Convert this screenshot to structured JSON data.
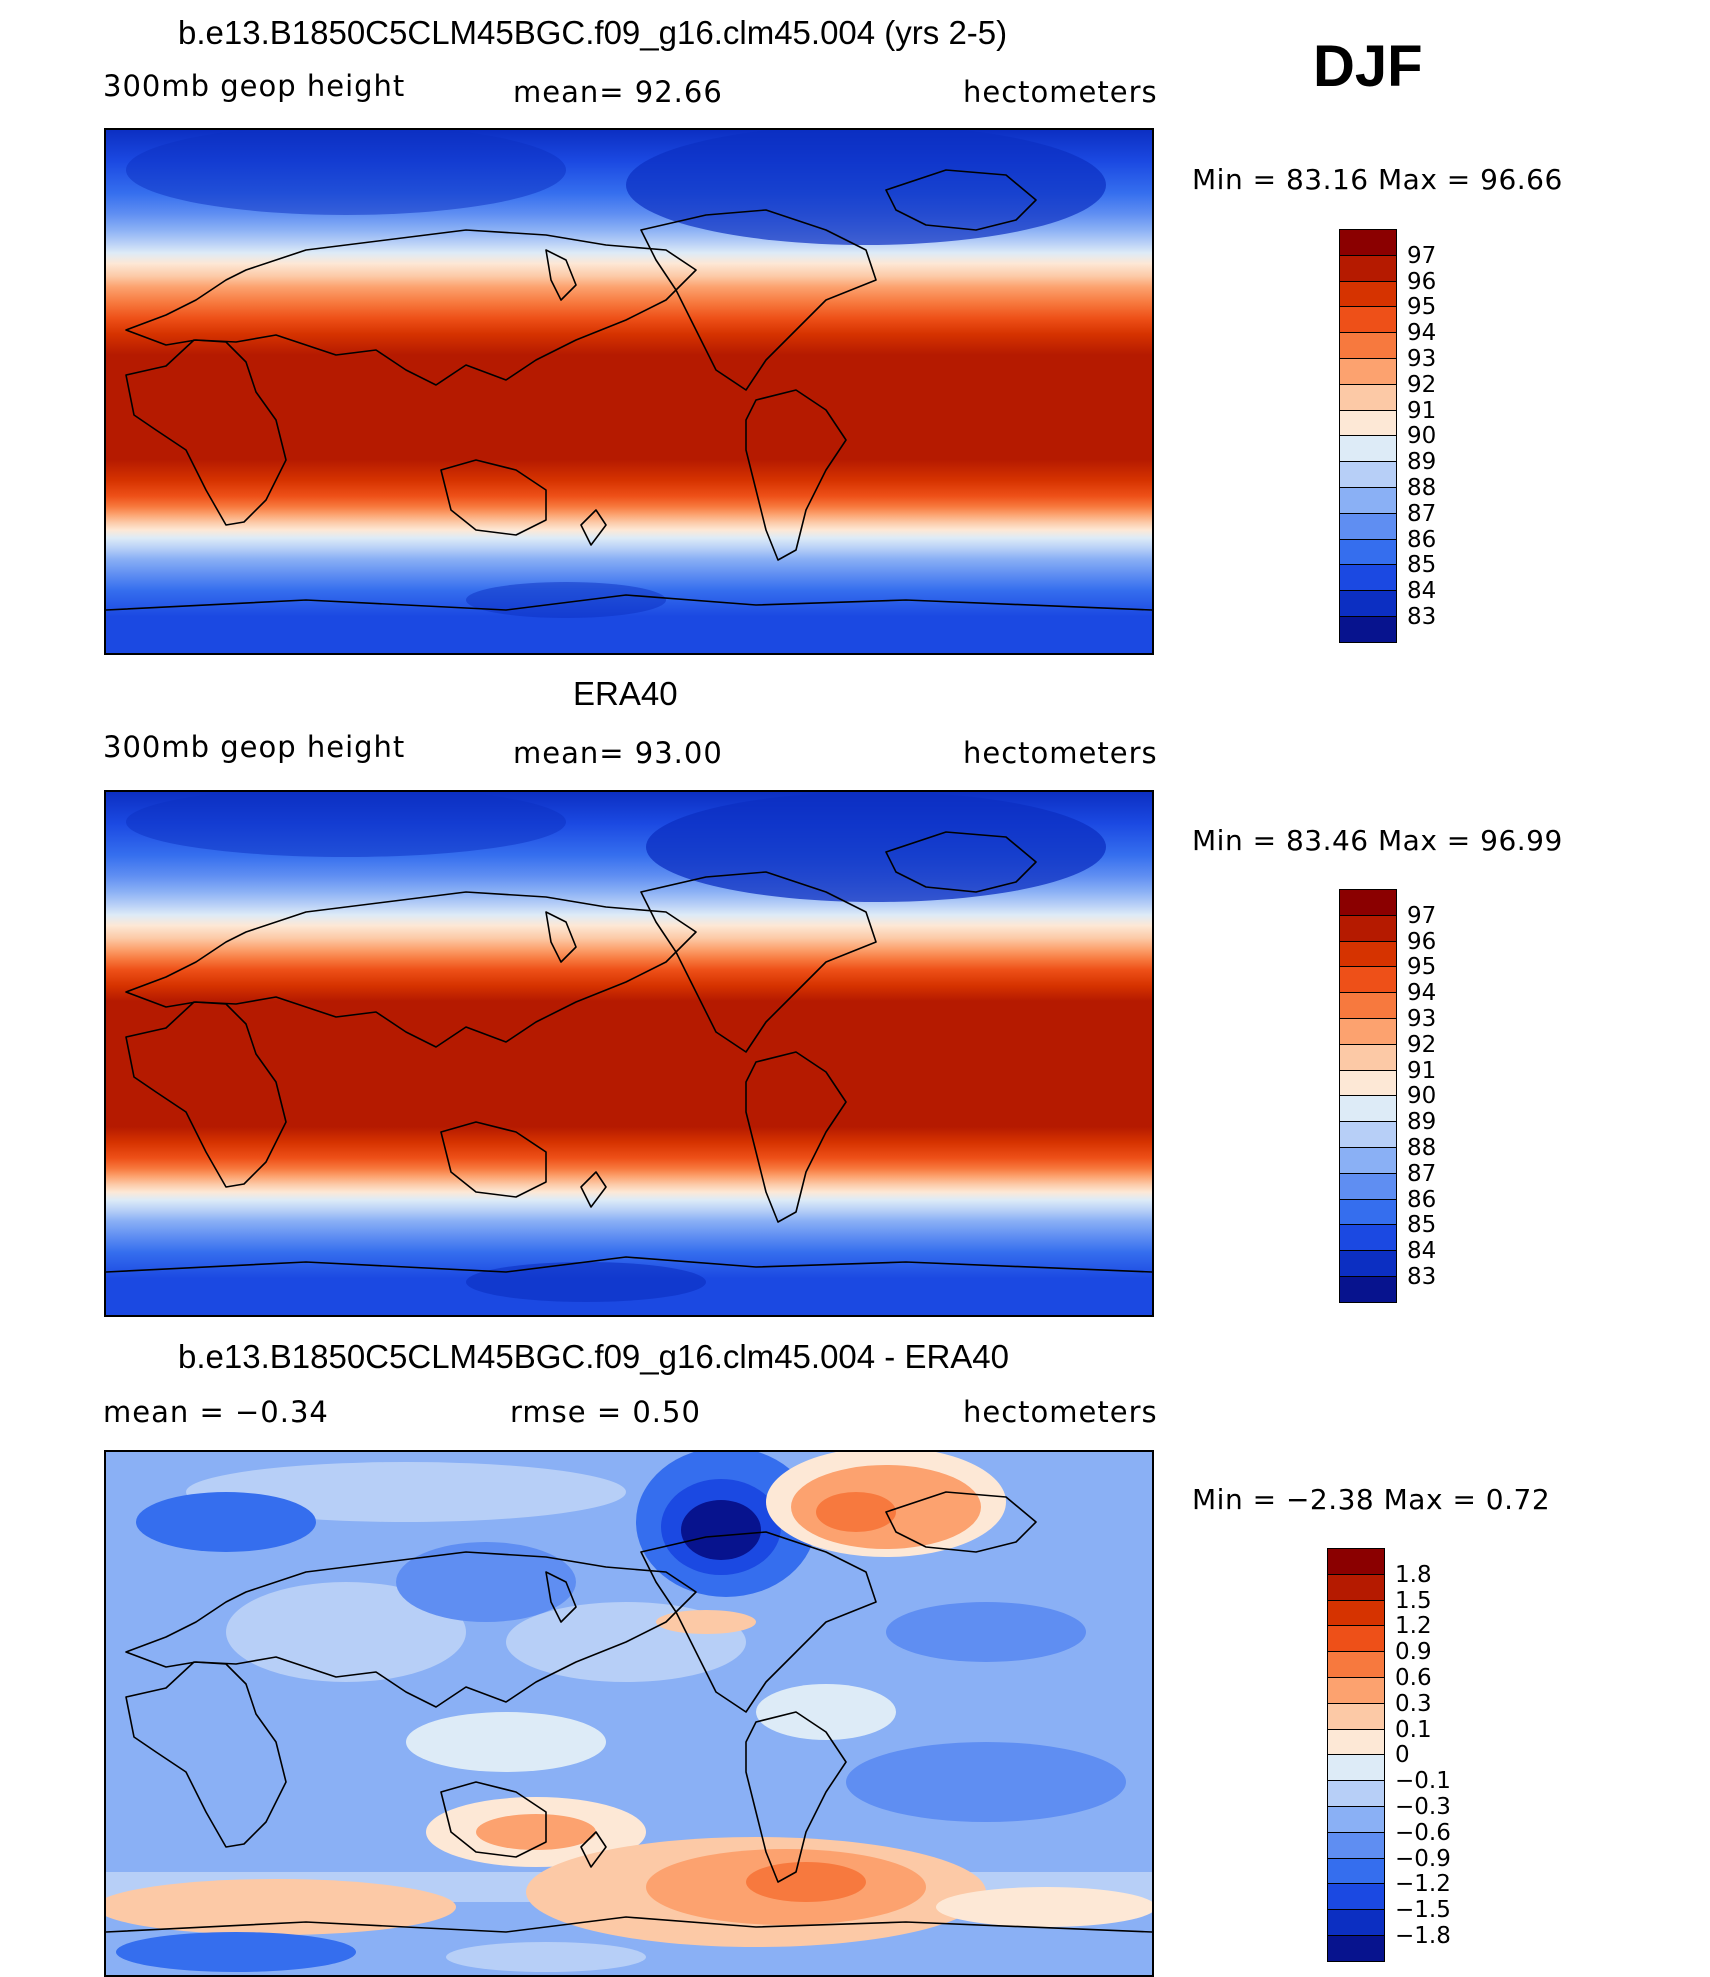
{
  "season": "DJF",
  "panels": [
    {
      "title": "b.e13.B1850C5CLM45BGC.f09_g16.clm45.004 (yrs 2-5)",
      "left_label": "300mb  geop  height",
      "center_label": "mean=   92.66",
      "right_label": "hectometers",
      "minmax": "Min  =    83.16  Max  =    96.66",
      "colorbar": {
        "labels": [
          "97",
          "96",
          "95",
          "94",
          "93",
          "92",
          "91",
          "90",
          "89",
          "88",
          "87",
          "86",
          "85",
          "84",
          "83"
        ],
        "colors": [
          "#8b0000",
          "#b51a00",
          "#d63300",
          "#ee5018",
          "#f7793e",
          "#fca26f",
          "#fcc9a6",
          "#fde8d6",
          "#ddebf7",
          "#b7cff7",
          "#8ab0f5",
          "#5f8ef2",
          "#356eee",
          "#1b49e2",
          "#0c2fc2",
          "#07138e"
        ]
      }
    },
    {
      "title": "ERA40",
      "left_label": "300mb  geop  height",
      "center_label": "mean=   93.00",
      "right_label": "hectometers",
      "minmax": "Min  =    83.46  Max  =    96.99",
      "colorbar": {
        "labels": [
          "97",
          "96",
          "95",
          "94",
          "93",
          "92",
          "91",
          "90",
          "89",
          "88",
          "87",
          "86",
          "85",
          "84",
          "83"
        ],
        "colors": [
          "#8b0000",
          "#b51a00",
          "#d63300",
          "#ee5018",
          "#f7793e",
          "#fca26f",
          "#fcc9a6",
          "#fde8d6",
          "#ddebf7",
          "#b7cff7",
          "#8ab0f5",
          "#5f8ef2",
          "#356eee",
          "#1b49e2",
          "#0c2fc2",
          "#07138e"
        ]
      }
    },
    {
      "title": "b.e13.B1850C5CLM45BGC.f09_g16.clm45.004 - ERA40",
      "left_label": "mean  =    −0.34",
      "center_label": "rmse  =     0.50",
      "right_label": "hectometers",
      "minmax": "Min  =    −2.38  Max  =      0.72",
      "colorbar": {
        "labels": [
          "1.8",
          "1.5",
          "1.2",
          "0.9",
          "0.6",
          "0.3",
          "0.1",
          "0",
          "−0.1",
          "−0.3",
          "−0.6",
          "−0.9",
          "−1.2",
          "−1.5",
          "−1.8"
        ],
        "colors": [
          "#8b0000",
          "#b51a00",
          "#d63300",
          "#ee5018",
          "#f7793e",
          "#fca26f",
          "#fcc9a6",
          "#fde8d6",
          "#ddebf7",
          "#b7cff7",
          "#8ab0f5",
          "#5f8ef2",
          "#356eee",
          "#1b49e2",
          "#0c2fc2",
          "#07138e"
        ]
      }
    }
  ]
}
